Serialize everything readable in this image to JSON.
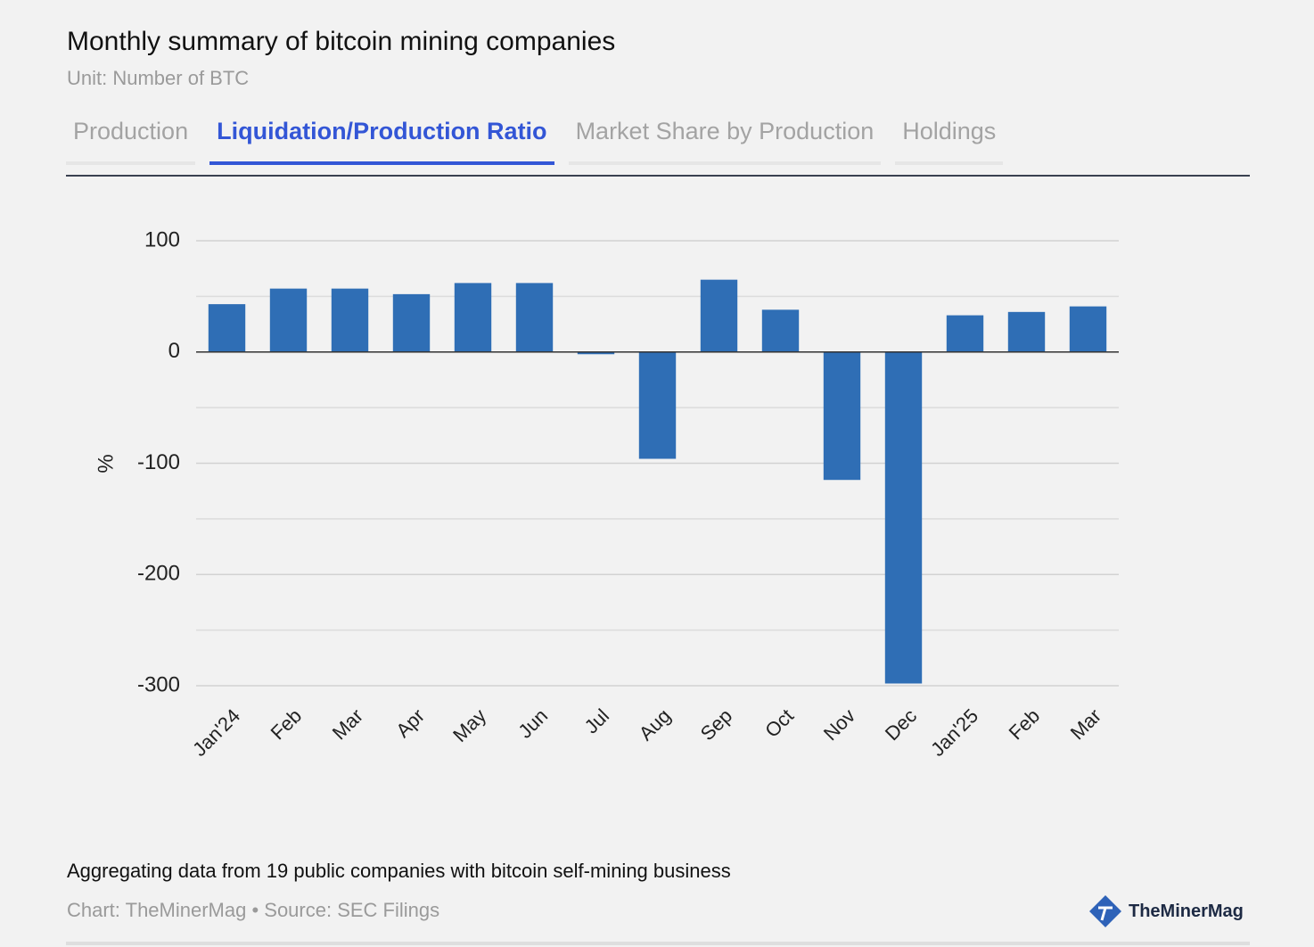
{
  "header": {
    "title": "Monthly summary of bitcoin mining companies",
    "subtitle": "Unit: Number of BTC"
  },
  "tabs": [
    "Production",
    "Liquidation/Production Ratio",
    "Market Share by Production",
    "Holdings"
  ],
  "active_tab": 1,
  "chart_data": {
    "type": "bar",
    "y_label": "%",
    "categories": [
      "Jan'24",
      "Feb",
      "Mar",
      "Apr",
      "May",
      "Jun",
      "Jul",
      "Aug",
      "Sep",
      "Oct",
      "Nov",
      "Dec",
      "Jan'25",
      "Feb",
      "Mar"
    ],
    "values": [
      43,
      57,
      57,
      52,
      62,
      62,
      -2,
      -96,
      65,
      38,
      -115,
      -298,
      33,
      36,
      41
    ],
    "color": "#2f6eb5",
    "ylim": [
      -300,
      100
    ],
    "yticks": [
      -300,
      -200,
      -100,
      0,
      100
    ],
    "minor_yticks": [
      -250,
      -150,
      -50,
      50
    ],
    "grid": true
  },
  "footer": {
    "note": "Aggregating data from 19 public companies with bitcoin self-mining business",
    "credit": "Chart: TheMinerMag • Source: SEC Filings",
    "logo": "TheMinerMag"
  }
}
